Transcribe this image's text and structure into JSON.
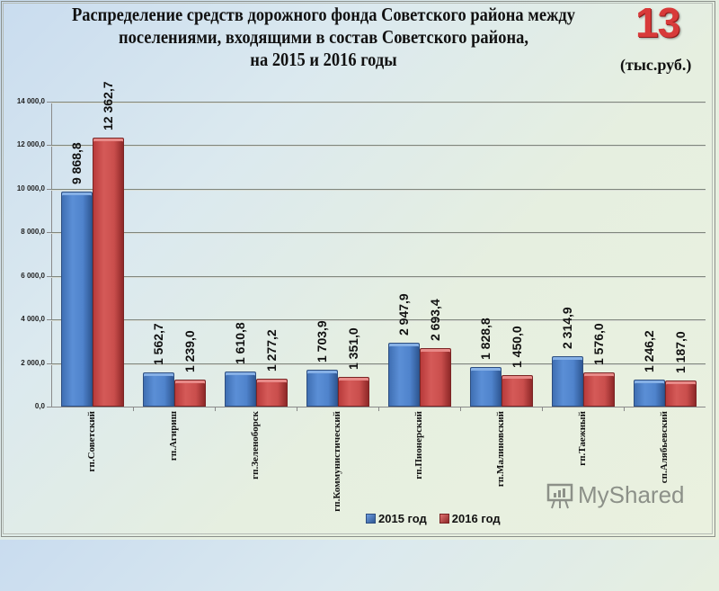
{
  "title": {
    "line1": "Распределение средств дорожного фонда Советского района между",
    "line2": "поселениями, входящими в состав Советского района,",
    "line3": "на 2015 и 2016 годы"
  },
  "slide_number": "13",
  "units": "(тыс.руб.)",
  "watermark": "MyShared",
  "colors": {
    "s2015": "#4f81bd",
    "s2016": "#c0504d",
    "title_number": "#d83a3a"
  },
  "chart_data": {
    "type": "bar",
    "title": "Распределение средств дорожного фонда Советского района между поселениями, входящими в состав Советского района, на 2015 и 2016 годы",
    "units": "тыс.руб.",
    "xlabel": "",
    "ylabel": "",
    "ylim": [
      0,
      14000
    ],
    "yticks": [
      "0,0",
      "2 000,0",
      "4 000,0",
      "6 000,0",
      "8 000,0",
      "10 000,0",
      "12 000,0",
      "14 000,0"
    ],
    "grid": true,
    "legend_position": "bottom",
    "categories": [
      "гп.Советский",
      "гп.Агириш",
      "гп.Зеленоборск",
      "гп.Коммунистический",
      "гп.Пионерский",
      "гп.Малиновский",
      "гп.Таежный",
      "сп.Алябьевский"
    ],
    "series": [
      {
        "name": "2015 год",
        "values": [
          9868.8,
          1562.7,
          1610.8,
          1703.9,
          2947.9,
          1828.8,
          2314.9,
          1246.2
        ],
        "labels": [
          "9 868,8",
          "1 562,7",
          "1 610,8",
          "1 703,9",
          "2 947,9",
          "1 828,8",
          "2 314,9",
          "1 246,2"
        ]
      },
      {
        "name": "2016 год",
        "values": [
          12362.7,
          1239.0,
          1277.2,
          1351.0,
          2693.4,
          1450.0,
          1576.0,
          1187.0
        ],
        "labels": [
          "12 362,7",
          "1 239,0",
          "1 277,2",
          "1 351,0",
          "2 693,4",
          "1 450,0",
          "1 576,0",
          "1 187,0"
        ]
      }
    ]
  }
}
